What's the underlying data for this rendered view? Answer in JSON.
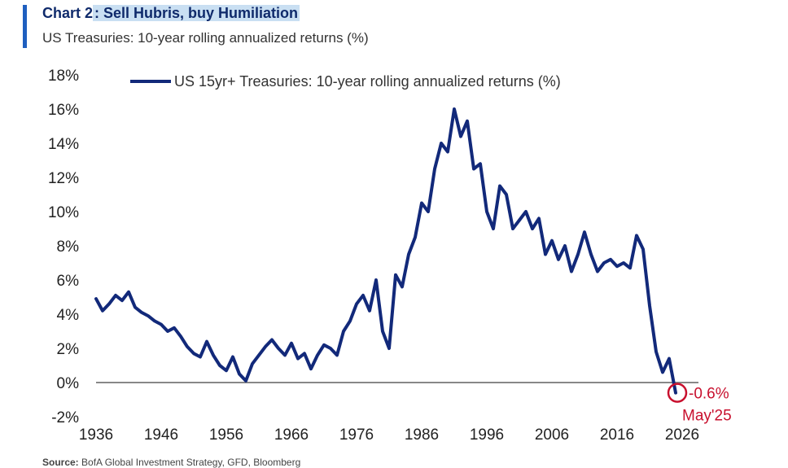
{
  "header": {
    "title_prefix": "Chart 2",
    "title_highlight": ": Sell Hubris, buy Humiliation",
    "subtitle": "US Treasuries: 10-year rolling annualized returns (%)"
  },
  "source": {
    "label": "Source:",
    "text": "BofA Global Investment Strategy, GFD, Bloomberg"
  },
  "colors": {
    "series": "#12297a",
    "zero_line": "#888888",
    "annotation": "#c8102e",
    "accent": "#1f5fbf"
  },
  "chart_data": {
    "type": "line",
    "title": "Chart 2: Sell Hubris, buy Humiliation",
    "subtitle": "US Treasuries: 10-year rolling annualized returns (%)",
    "legend_position": "top",
    "grid": false,
    "xlim": [
      1936,
      2026
    ],
    "ylim": [
      -2,
      18
    ],
    "x_ticks": [
      "1936",
      "1946",
      "1956",
      "1966",
      "1976",
      "1986",
      "1996",
      "2006",
      "2016",
      "2026"
    ],
    "y_ticks": [
      "18%",
      "16%",
      "14%",
      "12%",
      "10%",
      "8%",
      "6%",
      "4%",
      "2%",
      "0%",
      "-2%"
    ],
    "series": [
      {
        "name": "US 15yr+ Treasuries: 10-year rolling annualized returns (%)",
        "x": [
          1936,
          1937,
          1938,
          1939,
          1940,
          1941,
          1942,
          1943,
          1944,
          1945,
          1946,
          1947,
          1948,
          1949,
          1950,
          1951,
          1952,
          1953,
          1954,
          1955,
          1956,
          1957,
          1958,
          1959,
          1960,
          1961,
          1962,
          1963,
          1964,
          1965,
          1966,
          1967,
          1968,
          1969,
          1970,
          1971,
          1972,
          1973,
          1974,
          1975,
          1976,
          1977,
          1978,
          1979,
          1980,
          1981,
          1982,
          1983,
          1984,
          1985,
          1986,
          1987,
          1988,
          1989,
          1990,
          1991,
          1992,
          1993,
          1994,
          1995,
          1996,
          1997,
          1998,
          1999,
          2000,
          2001,
          2002,
          2003,
          2004,
          2005,
          2006,
          2007,
          2008,
          2009,
          2010,
          2011,
          2012,
          2013,
          2014,
          2015,
          2016,
          2017,
          2018,
          2019,
          2020,
          2021,
          2022,
          2023,
          2024,
          2025
        ],
        "y": [
          4.9,
          4.2,
          4.6,
          5.1,
          4.8,
          5.3,
          4.4,
          4.1,
          3.9,
          3.6,
          3.4,
          3.0,
          3.2,
          2.7,
          2.1,
          1.7,
          1.5,
          2.4,
          1.6,
          1.0,
          0.7,
          1.5,
          0.5,
          0.1,
          1.1,
          1.6,
          2.1,
          2.5,
          2.0,
          1.6,
          2.3,
          1.4,
          1.7,
          0.8,
          1.6,
          2.2,
          2.0,
          1.6,
          3.0,
          3.6,
          4.6,
          5.1,
          4.2,
          6.0,
          3.0,
          2.0,
          6.3,
          5.6,
          7.5,
          8.5,
          10.5,
          10.0,
          12.5,
          14.0,
          13.5,
          16.0,
          14.4,
          15.3,
          12.5,
          12.8,
          10.0,
          9.0,
          11.5,
          11.0,
          9.0,
          9.5,
          10.0,
          9.0,
          9.6,
          7.5,
          8.3,
          7.2,
          8.0,
          6.5,
          7.5,
          8.8,
          7.5,
          6.5,
          7.0,
          7.2,
          6.8,
          7.0,
          6.7,
          8.6,
          7.8,
          4.5,
          1.8,
          0.6,
          1.4,
          -0.6
        ]
      }
    ],
    "annotations": [
      {
        "x": 2025,
        "y": -0.6,
        "value_label": "-0.6%",
        "date_label": "May'25"
      }
    ]
  }
}
